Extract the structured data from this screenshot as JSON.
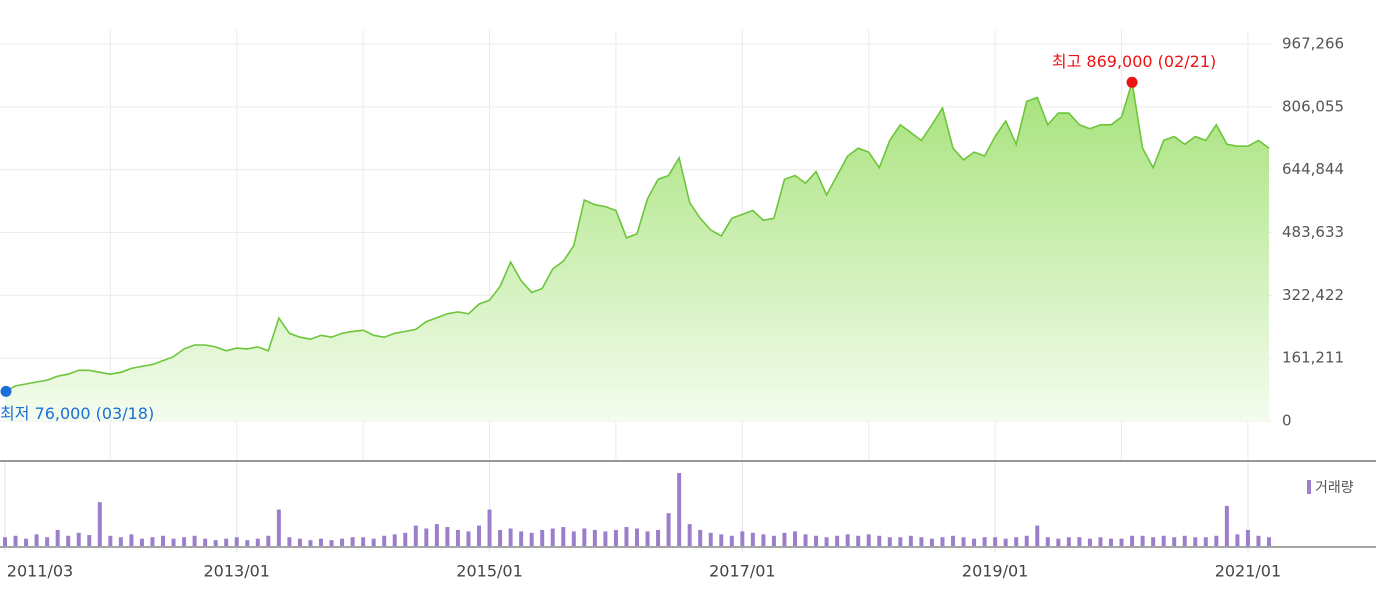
{
  "chart_data": {
    "type": "area",
    "x": [
      "2011/03",
      "2011/04",
      "2011/05",
      "2011/06",
      "2011/07",
      "2011/08",
      "2011/09",
      "2011/10",
      "2011/11",
      "2011/12",
      "2012/01",
      "2012/02",
      "2012/03",
      "2012/04",
      "2012/05",
      "2012/06",
      "2012/07",
      "2012/08",
      "2012/09",
      "2012/10",
      "2012/11",
      "2012/12",
      "2013/01",
      "2013/02",
      "2013/03",
      "2013/04",
      "2013/05",
      "2013/06",
      "2013/07",
      "2013/08",
      "2013/09",
      "2013/10",
      "2013/11",
      "2013/12",
      "2014/01",
      "2014/02",
      "2014/03",
      "2014/04",
      "2014/05",
      "2014/06",
      "2014/07",
      "2014/08",
      "2014/09",
      "2014/10",
      "2014/11",
      "2014/12",
      "2015/01",
      "2015/02",
      "2015/03",
      "2015/04",
      "2015/05",
      "2015/06",
      "2015/07",
      "2015/08",
      "2015/09",
      "2015/10",
      "2015/11",
      "2015/12",
      "2016/01",
      "2016/02",
      "2016/03",
      "2016/04",
      "2016/05",
      "2016/06",
      "2016/07",
      "2016/08",
      "2016/09",
      "2016/10",
      "2016/11",
      "2016/12",
      "2017/01",
      "2017/02",
      "2017/03",
      "2017/04",
      "2017/05",
      "2017/06",
      "2017/07",
      "2017/08",
      "2017/09",
      "2017/10",
      "2017/11",
      "2017/12",
      "2018/01",
      "2018/02",
      "2018/03",
      "2018/04",
      "2018/05",
      "2018/06",
      "2018/07",
      "2018/08",
      "2018/09",
      "2018/10",
      "2018/11",
      "2018/12",
      "2019/01",
      "2019/02",
      "2019/03",
      "2019/04",
      "2019/05",
      "2019/06",
      "2019/07",
      "2019/08",
      "2019/09",
      "2019/10",
      "2019/11",
      "2019/12",
      "2020/01",
      "2020/02",
      "2020/03",
      "2020/04",
      "2020/05",
      "2020/06",
      "2020/07",
      "2020/08",
      "2020/09",
      "2020/10",
      "2020/11",
      "2020/12",
      "2021/01",
      "2021/02",
      "2021/03"
    ],
    "values": [
      76000,
      90000,
      95000,
      100000,
      105000,
      115000,
      120000,
      130000,
      130000,
      125000,
      120000,
      125000,
      135000,
      140000,
      145000,
      155000,
      165000,
      185000,
      195000,
      195000,
      190000,
      180000,
      187000,
      185000,
      190000,
      180000,
      264000,
      225000,
      215000,
      210000,
      220000,
      215000,
      225000,
      230000,
      233000,
      220000,
      215000,
      225000,
      230000,
      235000,
      255000,
      265000,
      275000,
      280000,
      275000,
      300000,
      310000,
      345000,
      408000,
      360000,
      330000,
      340000,
      390000,
      410000,
      450000,
      567000,
      555000,
      550000,
      540000,
      470000,
      480000,
      570000,
      620000,
      630000,
      675000,
      560000,
      520000,
      490000,
      475000,
      520000,
      530000,
      540000,
      515000,
      520000,
      620000,
      630000,
      610000,
      640000,
      580000,
      630000,
      680000,
      700000,
      690000,
      650000,
      720000,
      760000,
      740000,
      720000,
      760000,
      803000,
      700000,
      670000,
      690000,
      680000,
      730000,
      770000,
      710000,
      820000,
      830000,
      760000,
      790000,
      790000,
      760000,
      750000,
      760000,
      760000,
      780000,
      869000,
      700000,
      650000,
      720000,
      730000,
      710000,
      730000,
      720000,
      760000,
      710000,
      705000,
      705000,
      720000,
      700000
    ],
    "color": "#6cc63a",
    "ylim": [
      0,
      967266
    ],
    "yticks": [
      0,
      {
        "value": 161211,
        "label": "161,211"
      },
      {
        "value": 322422,
        "label": "322,422"
      },
      {
        "value": 483633,
        "label": "483,633"
      },
      {
        "value": 644844,
        "label": "644,844"
      },
      {
        "value": 806055,
        "label": "806,055"
      },
      {
        "value": 967266,
        "label": "967,266"
      }
    ],
    "xticks": [
      "2011/03",
      "2013/01",
      "2015/01",
      "2017/01",
      "2019/01",
      "2021/01"
    ],
    "grid": true,
    "high": {
      "label": "최고 869,000 (02/21)",
      "value": 869000,
      "color": "#ee1111"
    },
    "low": {
      "label": "최저 76,000 (03/18)",
      "value": 76000,
      "color": "#1a6fd8"
    },
    "volume": {
      "name": "거래량",
      "color": "#9b7fcc",
      "ylim": [
        0,
        100
      ],
      "values": [
        12,
        14,
        10,
        16,
        12,
        22,
        14,
        18,
        15,
        60,
        14,
        12,
        16,
        10,
        12,
        14,
        10,
        12,
        14,
        10,
        8,
        10,
        12,
        8,
        10,
        14,
        50,
        12,
        10,
        8,
        10,
        8,
        10,
        12,
        12,
        10,
        14,
        16,
        18,
        28,
        24,
        30,
        26,
        22,
        20,
        28,
        50,
        22,
        24,
        20,
        18,
        22,
        24,
        26,
        20,
        24,
        22,
        20,
        22,
        26,
        24,
        20,
        22,
        45,
        100,
        30,
        22,
        18,
        16,
        14,
        20,
        18,
        16,
        14,
        18,
        20,
        16,
        14,
        12,
        14,
        16,
        14,
        16,
        14,
        12,
        12,
        14,
        12,
        10,
        12,
        14,
        12,
        10,
        12,
        12,
        10,
        12,
        14,
        28,
        12,
        10,
        12,
        12,
        10,
        12,
        10,
        10,
        14,
        14,
        12,
        14,
        12,
        14,
        12,
        12,
        14,
        55,
        16,
        22,
        14,
        12
      ]
    }
  }
}
